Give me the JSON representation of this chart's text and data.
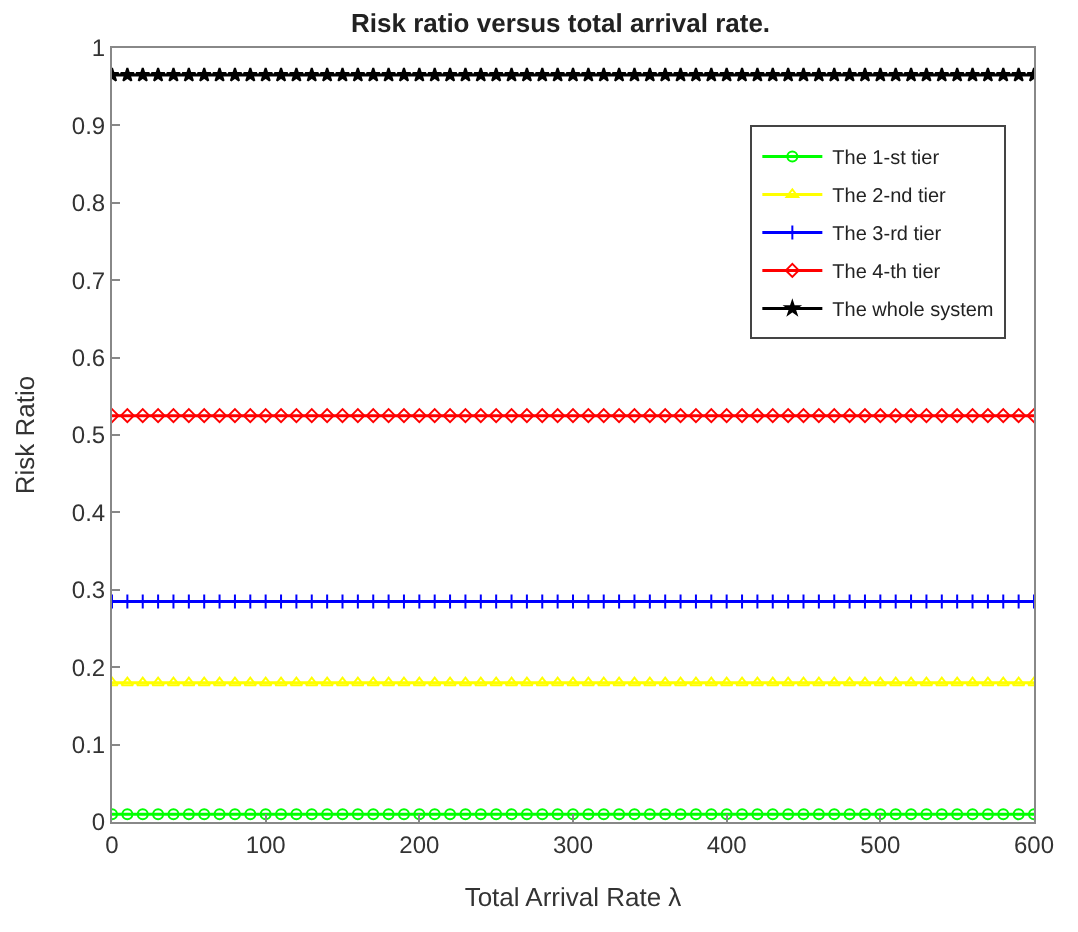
{
  "chart_data": {
    "type": "line",
    "title": "Risk ratio versus total arrival rate.",
    "xlabel": "Total Arrival Rate λ",
    "ylabel": "Risk Ratio",
    "x": [
      0,
      10,
      20,
      30,
      40,
      50,
      60,
      70,
      80,
      90,
      100,
      110,
      120,
      130,
      140,
      150,
      160,
      170,
      180,
      190,
      200,
      210,
      220,
      230,
      240,
      250,
      260,
      270,
      280,
      290,
      300,
      310,
      320,
      330,
      340,
      350,
      360,
      370,
      380,
      390,
      400,
      410,
      420,
      430,
      440,
      450,
      460,
      470,
      480,
      490,
      500,
      510,
      520,
      530,
      540,
      550,
      560,
      570,
      580,
      590,
      600
    ],
    "series": [
      {
        "name": "The 1-st tier",
        "color": "#00ff00",
        "marker": "circle",
        "values": [
          0.01,
          0.01,
          0.01,
          0.01,
          0.01,
          0.01,
          0.01,
          0.01,
          0.01,
          0.01,
          0.01,
          0.01,
          0.01,
          0.01,
          0.01,
          0.01,
          0.01,
          0.01,
          0.01,
          0.01,
          0.01,
          0.01,
          0.01,
          0.01,
          0.01,
          0.01,
          0.01,
          0.01,
          0.01,
          0.01,
          0.01,
          0.01,
          0.01,
          0.01,
          0.01,
          0.01,
          0.01,
          0.01,
          0.01,
          0.01,
          0.01,
          0.01,
          0.01,
          0.01,
          0.01,
          0.01,
          0.01,
          0.01,
          0.01,
          0.01,
          0.01,
          0.01,
          0.01,
          0.01,
          0.01,
          0.01,
          0.01,
          0.01,
          0.01,
          0.01,
          0.01
        ]
      },
      {
        "name": "The 2-nd tier",
        "color": "#ffff00",
        "marker": "triangle",
        "values": [
          0.18,
          0.18,
          0.18,
          0.18,
          0.18,
          0.18,
          0.18,
          0.18,
          0.18,
          0.18,
          0.18,
          0.18,
          0.18,
          0.18,
          0.18,
          0.18,
          0.18,
          0.18,
          0.18,
          0.18,
          0.18,
          0.18,
          0.18,
          0.18,
          0.18,
          0.18,
          0.18,
          0.18,
          0.18,
          0.18,
          0.18,
          0.18,
          0.18,
          0.18,
          0.18,
          0.18,
          0.18,
          0.18,
          0.18,
          0.18,
          0.18,
          0.18,
          0.18,
          0.18,
          0.18,
          0.18,
          0.18,
          0.18,
          0.18,
          0.18,
          0.18,
          0.18,
          0.18,
          0.18,
          0.18,
          0.18,
          0.18,
          0.18,
          0.18,
          0.18,
          0.18
        ]
      },
      {
        "name": "The 3-rd tier",
        "color": "#0000ff",
        "marker": "cross",
        "values": [
          0.285,
          0.285,
          0.285,
          0.285,
          0.285,
          0.285,
          0.285,
          0.285,
          0.285,
          0.285,
          0.285,
          0.285,
          0.285,
          0.285,
          0.285,
          0.285,
          0.285,
          0.285,
          0.285,
          0.285,
          0.285,
          0.285,
          0.285,
          0.285,
          0.285,
          0.285,
          0.285,
          0.285,
          0.285,
          0.285,
          0.285,
          0.285,
          0.285,
          0.285,
          0.285,
          0.285,
          0.285,
          0.285,
          0.285,
          0.285,
          0.285,
          0.285,
          0.285,
          0.285,
          0.285,
          0.285,
          0.285,
          0.285,
          0.285,
          0.285,
          0.285,
          0.285,
          0.285,
          0.285,
          0.285,
          0.285,
          0.285,
          0.285,
          0.285,
          0.285,
          0.285
        ]
      },
      {
        "name": "The 4-th tier",
        "color": "#ff0000",
        "marker": "diamond",
        "values": [
          0.525,
          0.525,
          0.525,
          0.525,
          0.525,
          0.525,
          0.525,
          0.525,
          0.525,
          0.525,
          0.525,
          0.525,
          0.525,
          0.525,
          0.525,
          0.525,
          0.525,
          0.525,
          0.525,
          0.525,
          0.525,
          0.525,
          0.525,
          0.525,
          0.525,
          0.525,
          0.525,
          0.525,
          0.525,
          0.525,
          0.525,
          0.525,
          0.525,
          0.525,
          0.525,
          0.525,
          0.525,
          0.525,
          0.525,
          0.525,
          0.525,
          0.525,
          0.525,
          0.525,
          0.525,
          0.525,
          0.525,
          0.525,
          0.525,
          0.525,
          0.525,
          0.525,
          0.525,
          0.525,
          0.525,
          0.525,
          0.525,
          0.525,
          0.525,
          0.525,
          0.525
        ]
      },
      {
        "name": "The whole system",
        "color": "#000000",
        "marker": "star",
        "values": [
          0.965,
          0.965,
          0.965,
          0.965,
          0.965,
          0.965,
          0.965,
          0.965,
          0.965,
          0.965,
          0.965,
          0.965,
          0.965,
          0.965,
          0.965,
          0.965,
          0.965,
          0.965,
          0.965,
          0.965,
          0.965,
          0.965,
          0.965,
          0.965,
          0.965,
          0.965,
          0.965,
          0.965,
          0.965,
          0.965,
          0.965,
          0.965,
          0.965,
          0.965,
          0.965,
          0.965,
          0.965,
          0.965,
          0.965,
          0.965,
          0.965,
          0.965,
          0.965,
          0.965,
          0.965,
          0.965,
          0.965,
          0.965,
          0.965,
          0.965,
          0.965,
          0.965,
          0.965,
          0.965,
          0.965,
          0.965,
          0.965,
          0.965,
          0.965,
          0.965,
          0.965
        ]
      }
    ],
    "xlim": [
      0,
      600
    ],
    "xticks": [
      0,
      100,
      200,
      300,
      400,
      500,
      600
    ],
    "ylim": [
      0,
      1
    ],
    "yticks": [
      0,
      0.1,
      0.2,
      0.3,
      0.4,
      0.5,
      0.6,
      0.7,
      0.8,
      0.9,
      1
    ],
    "legend": "top right",
    "line_style": "solid"
  }
}
